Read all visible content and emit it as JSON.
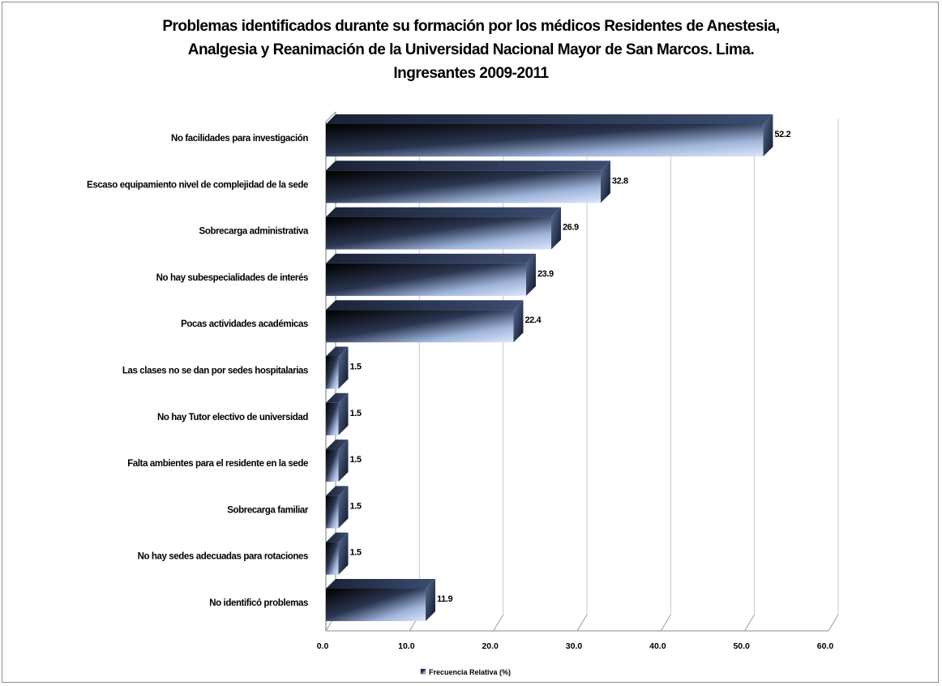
{
  "chart_data": {
    "type": "bar",
    "orientation": "horizontal",
    "title_lines": [
      "Problemas identificados durante su formación por los médicos Residentes de Anestesia,",
      "Analgesia y Reanimación de la Universidad Nacional Mayor de San Marcos. Lima.",
      "Ingresantes 2009-2011"
    ],
    "categories": [
      "No facilidades para investigación",
      "Escaso equipamiento nivel de complejidad de la sede",
      "Sobrecarga administrativa",
      "No hay subespecialidades de interés",
      "Pocas actividades académicas",
      "Las clases no se dan por sedes hospitalarias",
      "No hay Tutor electivo de universidad",
      "Falta ambientes para el residente en la sede",
      "Sobrecarga familiar",
      "No hay sedes adecuadas para rotaciones",
      "No identificó problemas"
    ],
    "series": [
      {
        "name": "Frecuencia Relativa (%)",
        "values": [
          52.2,
          32.8,
          26.9,
          23.9,
          22.4,
          1.5,
          1.5,
          1.5,
          1.5,
          1.5,
          11.9
        ],
        "value_labels": [
          "52.2",
          "32.8",
          "26.9",
          "23.9",
          "22.4",
          "1.5",
          "1.5",
          "1.5",
          "1.5",
          "1.5",
          "11.9"
        ]
      }
    ],
    "xlim": [
      0,
      60
    ],
    "x_ticks": [
      "0.0",
      "10.0",
      "20.0",
      "30.0",
      "40.0",
      "50.0",
      "60.0"
    ],
    "grid": true,
    "legend_position": "bottom",
    "style": "3d-bar",
    "colors": {
      "bar_dark": "#000000",
      "bar_light": "#c9d9f5",
      "bar_mid": "#4a5f86",
      "grid": "#c8c8c8"
    }
  }
}
